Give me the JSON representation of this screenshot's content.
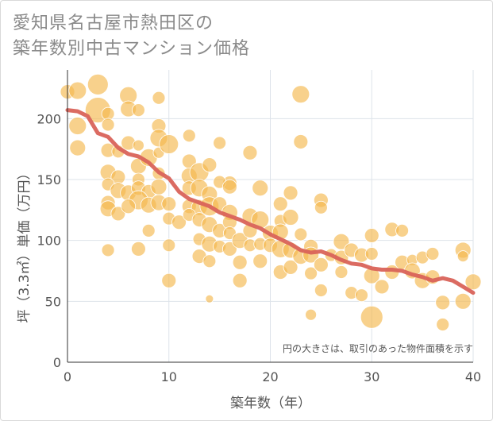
{
  "title_lines": [
    "愛知県名古屋市熱田区の",
    "築年数別中古マンション価格"
  ],
  "chart_data": {
    "type": "scatter",
    "title": "愛知県名古屋市熱田区の築年数別中古マンション価格",
    "xlabel": "築年数（年）",
    "ylabel": "坪（3.3㎡）単価（万円）",
    "xlim": [
      0,
      40
    ],
    "ylim": [
      0,
      240
    ],
    "xticks": [
      0,
      10,
      20,
      30,
      40
    ],
    "yticks": [
      0,
      50,
      100,
      150,
      200
    ],
    "grid": true,
    "annotation": "円の大きさは、取引のあった物件面積を示す",
    "colors": {
      "points": "#f5b94f",
      "trend": "#d9635a",
      "grid": "#dde3ea"
    },
    "points": [
      {
        "x": 0,
        "y": 222,
        "s": 9
      },
      {
        "x": 1,
        "y": 223,
        "s": 11
      },
      {
        "x": 3,
        "y": 228,
        "s": 13
      },
      {
        "x": 3,
        "y": 207,
        "s": 16
      },
      {
        "x": 4,
        "y": 204,
        "s": 8
      },
      {
        "x": 1,
        "y": 194,
        "s": 11
      },
      {
        "x": 1,
        "y": 176,
        "s": 10
      },
      {
        "x": 4,
        "y": 195,
        "s": 8
      },
      {
        "x": 4,
        "y": 174,
        "s": 9
      },
      {
        "x": 5,
        "y": 173,
        "s": 8
      },
      {
        "x": 4,
        "y": 156,
        "s": 10
      },
      {
        "x": 5,
        "y": 152,
        "s": 9
      },
      {
        "x": 4,
        "y": 146,
        "s": 8
      },
      {
        "x": 5,
        "y": 141,
        "s": 10
      },
      {
        "x": 4,
        "y": 131,
        "s": 9
      },
      {
        "x": 4,
        "y": 126,
        "s": 10
      },
      {
        "x": 5,
        "y": 122,
        "s": 9
      },
      {
        "x": 4,
        "y": 92,
        "s": 8
      },
      {
        "x": 6,
        "y": 219,
        "s": 11
      },
      {
        "x": 6,
        "y": 208,
        "s": 10
      },
      {
        "x": 7,
        "y": 207,
        "s": 8
      },
      {
        "x": 6,
        "y": 180,
        "s": 9
      },
      {
        "x": 7,
        "y": 178,
        "s": 7
      },
      {
        "x": 7,
        "y": 161,
        "s": 10
      },
      {
        "x": 8,
        "y": 168,
        "s": 11
      },
      {
        "x": 7,
        "y": 150,
        "s": 8
      },
      {
        "x": 6,
        "y": 139,
        "s": 10
      },
      {
        "x": 7,
        "y": 143,
        "s": 9
      },
      {
        "x": 8,
        "y": 140,
        "s": 9
      },
      {
        "x": 7,
        "y": 133,
        "s": 12
      },
      {
        "x": 6,
        "y": 128,
        "s": 9
      },
      {
        "x": 8,
        "y": 129,
        "s": 10
      },
      {
        "x": 8,
        "y": 108,
        "s": 8
      },
      {
        "x": 7,
        "y": 93,
        "s": 9
      },
      {
        "x": 9,
        "y": 217,
        "s": 8
      },
      {
        "x": 9,
        "y": 194,
        "s": 9
      },
      {
        "x": 9,
        "y": 184,
        "s": 11
      },
      {
        "x": 9,
        "y": 172,
        "s": 7
      },
      {
        "x": 10,
        "y": 179,
        "s": 12
      },
      {
        "x": 9,
        "y": 155,
        "s": 8
      },
      {
        "x": 9,
        "y": 144,
        "s": 10
      },
      {
        "x": 9,
        "y": 131,
        "s": 10
      },
      {
        "x": 10,
        "y": 130,
        "s": 9
      },
      {
        "x": 10,
        "y": 118,
        "s": 8
      },
      {
        "x": 11,
        "y": 115,
        "s": 9
      },
      {
        "x": 10,
        "y": 96,
        "s": 8
      },
      {
        "x": 10,
        "y": 67,
        "s": 9
      },
      {
        "x": 12,
        "y": 186,
        "s": 8
      },
      {
        "x": 12,
        "y": 165,
        "s": 9
      },
      {
        "x": 12,
        "y": 153,
        "s": 10
      },
      {
        "x": 13,
        "y": 156,
        "s": 12
      },
      {
        "x": 14,
        "y": 162,
        "s": 9
      },
      {
        "x": 12,
        "y": 143,
        "s": 9
      },
      {
        "x": 13,
        "y": 143,
        "s": 11
      },
      {
        "x": 14,
        "y": 138,
        "s": 10
      },
      {
        "x": 12,
        "y": 128,
        "s": 9
      },
      {
        "x": 13,
        "y": 127,
        "s": 10
      },
      {
        "x": 14,
        "y": 128,
        "s": 12
      },
      {
        "x": 15,
        "y": 130,
        "s": 9
      },
      {
        "x": 12,
        "y": 121,
        "s": 8
      },
      {
        "x": 13,
        "y": 117,
        "s": 9
      },
      {
        "x": 14,
        "y": 113,
        "s": 10
      },
      {
        "x": 13,
        "y": 101,
        "s": 8
      },
      {
        "x": 15,
        "y": 108,
        "s": 9
      },
      {
        "x": 14,
        "y": 97,
        "s": 10
      },
      {
        "x": 15,
        "y": 95,
        "s": 8
      },
      {
        "x": 13,
        "y": 87,
        "s": 9
      },
      {
        "x": 14,
        "y": 83,
        "s": 8
      },
      {
        "x": 14,
        "y": 52,
        "s": 5
      },
      {
        "x": 15,
        "y": 180,
        "s": 8
      },
      {
        "x": 16,
        "y": 147,
        "s": 9
      },
      {
        "x": 15,
        "y": 148,
        "s": 8
      },
      {
        "x": 16,
        "y": 144,
        "s": 9
      },
      {
        "x": 16,
        "y": 123,
        "s": 10
      },
      {
        "x": 16,
        "y": 115,
        "s": 9
      },
      {
        "x": 16,
        "y": 106,
        "s": 8
      },
      {
        "x": 16,
        "y": 93,
        "s": 9
      },
      {
        "x": 17,
        "y": 100,
        "s": 10
      },
      {
        "x": 17,
        "y": 82,
        "s": 9
      },
      {
        "x": 17,
        "y": 67,
        "s": 9
      },
      {
        "x": 18,
        "y": 172,
        "s": 9
      },
      {
        "x": 18,
        "y": 120,
        "s": 10
      },
      {
        "x": 18,
        "y": 108,
        "s": 9
      },
      {
        "x": 18,
        "y": 96,
        "s": 8
      },
      {
        "x": 19,
        "y": 143,
        "s": 10
      },
      {
        "x": 19,
        "y": 117,
        "s": 11
      },
      {
        "x": 19,
        "y": 97,
        "s": 8
      },
      {
        "x": 19,
        "y": 83,
        "s": 9
      },
      {
        "x": 20,
        "y": 106,
        "s": 10
      },
      {
        "x": 20,
        "y": 96,
        "s": 9
      },
      {
        "x": 21,
        "y": 130,
        "s": 9
      },
      {
        "x": 21,
        "y": 116,
        "s": 8
      },
      {
        "x": 21,
        "y": 107,
        "s": 10
      },
      {
        "x": 21,
        "y": 93,
        "s": 11
      },
      {
        "x": 21,
        "y": 74,
        "s": 9
      },
      {
        "x": 22,
        "y": 139,
        "s": 9
      },
      {
        "x": 22,
        "y": 119,
        "s": 10
      },
      {
        "x": 22,
        "y": 92,
        "s": 10
      },
      {
        "x": 22,
        "y": 78,
        "s": 9
      },
      {
        "x": 23,
        "y": 220,
        "s": 11
      },
      {
        "x": 23,
        "y": 181,
        "s": 9
      },
      {
        "x": 23,
        "y": 105,
        "s": 8
      },
      {
        "x": 23,
        "y": 87,
        "s": 10
      },
      {
        "x": 24,
        "y": 95,
        "s": 9
      },
      {
        "x": 24,
        "y": 88,
        "s": 10
      },
      {
        "x": 24,
        "y": 73,
        "s": 8
      },
      {
        "x": 24,
        "y": 39,
        "s": 7
      },
      {
        "x": 25,
        "y": 133,
        "s": 9
      },
      {
        "x": 25,
        "y": 127,
        "s": 8
      },
      {
        "x": 25,
        "y": 80,
        "s": 9
      },
      {
        "x": 25,
        "y": 59,
        "s": 8
      },
      {
        "x": 26,
        "y": 88,
        "s": 8
      },
      {
        "x": 27,
        "y": 99,
        "s": 10
      },
      {
        "x": 27,
        "y": 86,
        "s": 9
      },
      {
        "x": 27,
        "y": 74,
        "s": 8
      },
      {
        "x": 28,
        "y": 92,
        "s": 9
      },
      {
        "x": 28,
        "y": 57,
        "s": 8
      },
      {
        "x": 29,
        "y": 88,
        "s": 9
      },
      {
        "x": 29,
        "y": 55,
        "s": 8
      },
      {
        "x": 30,
        "y": 104,
        "s": 9
      },
      {
        "x": 30,
        "y": 89,
        "s": 8
      },
      {
        "x": 30,
        "y": 71,
        "s": 10
      },
      {
        "x": 30,
        "y": 37,
        "s": 14
      },
      {
        "x": 31,
        "y": 62,
        "s": 9
      },
      {
        "x": 32,
        "y": 109,
        "s": 9
      },
      {
        "x": 32,
        "y": 74,
        "s": 9
      },
      {
        "x": 33,
        "y": 108,
        "s": 8
      },
      {
        "x": 33,
        "y": 82,
        "s": 9
      },
      {
        "x": 34,
        "y": 84,
        "s": 7
      },
      {
        "x": 34,
        "y": 75,
        "s": 10
      },
      {
        "x": 35,
        "y": 86,
        "s": 8
      },
      {
        "x": 35,
        "y": 67,
        "s": 10
      },
      {
        "x": 36,
        "y": 89,
        "s": 8
      },
      {
        "x": 36,
        "y": 70,
        "s": 9
      },
      {
        "x": 37,
        "y": 49,
        "s": 9
      },
      {
        "x": 37,
        "y": 31,
        "s": 8
      },
      {
        "x": 39,
        "y": 92,
        "s": 10
      },
      {
        "x": 39,
        "y": 87,
        "s": 7
      },
      {
        "x": 39,
        "y": 50,
        "s": 10
      },
      {
        "x": 40,
        "y": 66,
        "s": 10
      }
    ],
    "trend": [
      {
        "x": 0,
        "y": 207
      },
      {
        "x": 1,
        "y": 206
      },
      {
        "x": 2,
        "y": 202
      },
      {
        "x": 3,
        "y": 188
      },
      {
        "x": 4,
        "y": 185
      },
      {
        "x": 5,
        "y": 176
      },
      {
        "x": 6,
        "y": 171
      },
      {
        "x": 7,
        "y": 169
      },
      {
        "x": 8,
        "y": 164
      },
      {
        "x": 9,
        "y": 156
      },
      {
        "x": 10,
        "y": 151
      },
      {
        "x": 11,
        "y": 140
      },
      {
        "x": 12,
        "y": 134
      },
      {
        "x": 13,
        "y": 131
      },
      {
        "x": 14,
        "y": 128
      },
      {
        "x": 15,
        "y": 123
      },
      {
        "x": 16,
        "y": 120
      },
      {
        "x": 17,
        "y": 117
      },
      {
        "x": 18,
        "y": 113
      },
      {
        "x": 19,
        "y": 110
      },
      {
        "x": 20,
        "y": 105
      },
      {
        "x": 21,
        "y": 101
      },
      {
        "x": 22,
        "y": 97
      },
      {
        "x": 23,
        "y": 92
      },
      {
        "x": 24,
        "y": 90
      },
      {
        "x": 25,
        "y": 91
      },
      {
        "x": 26,
        "y": 88
      },
      {
        "x": 27,
        "y": 84
      },
      {
        "x": 28,
        "y": 81
      },
      {
        "x": 29,
        "y": 80
      },
      {
        "x": 30,
        "y": 77
      },
      {
        "x": 31,
        "y": 76
      },
      {
        "x": 32,
        "y": 76
      },
      {
        "x": 33,
        "y": 75
      },
      {
        "x": 34,
        "y": 72
      },
      {
        "x": 35,
        "y": 70
      },
      {
        "x": 36,
        "y": 67
      },
      {
        "x": 37,
        "y": 69
      },
      {
        "x": 38,
        "y": 67
      },
      {
        "x": 39,
        "y": 62
      },
      {
        "x": 40,
        "y": 57
      }
    ]
  }
}
